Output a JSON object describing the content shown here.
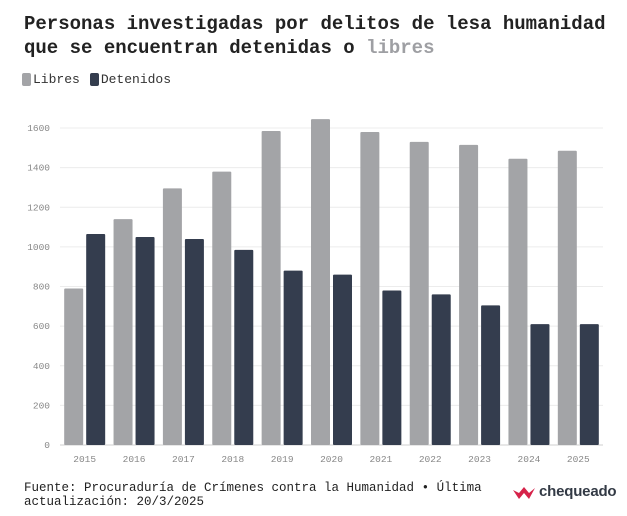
{
  "header": {
    "title_main": "Personas investigadas por delitos de lesa humanidad que se encuentran detenidas o",
    "title_highlight": "libres"
  },
  "legend": [
    {
      "label": "Libres",
      "color": "#a3a4a7"
    },
    {
      "label": "Detenidos",
      "color": "#343d4e"
    }
  ],
  "chart_data": {
    "type": "bar",
    "categories": [
      "2015",
      "2016",
      "2017",
      "2018",
      "2019",
      "2020",
      "2021",
      "2022",
      "2023",
      "2024",
      "2025"
    ],
    "series": [
      {
        "name": "Libres",
        "color": "#a3a4a7",
        "values": [
          790,
          1140,
          1295,
          1380,
          1585,
          1645,
          1580,
          1530,
          1515,
          1445,
          1485
        ]
      },
      {
        "name": "Detenidos",
        "color": "#343d4e",
        "values": [
          1065,
          1050,
          1040,
          985,
          880,
          860,
          780,
          760,
          705,
          610,
          610
        ]
      }
    ],
    "yticks": [
      0,
      200,
      400,
      600,
      800,
      1000,
      1200,
      1400,
      1600
    ],
    "ylim": [
      0,
      1600
    ],
    "grid": true,
    "legend_position": "top-left"
  },
  "footer": {
    "source": "Fuente: Procuraduría de Crímenes contra la Humanidad • Última actualización: 20/3/2025",
    "brand": "chequeado"
  }
}
